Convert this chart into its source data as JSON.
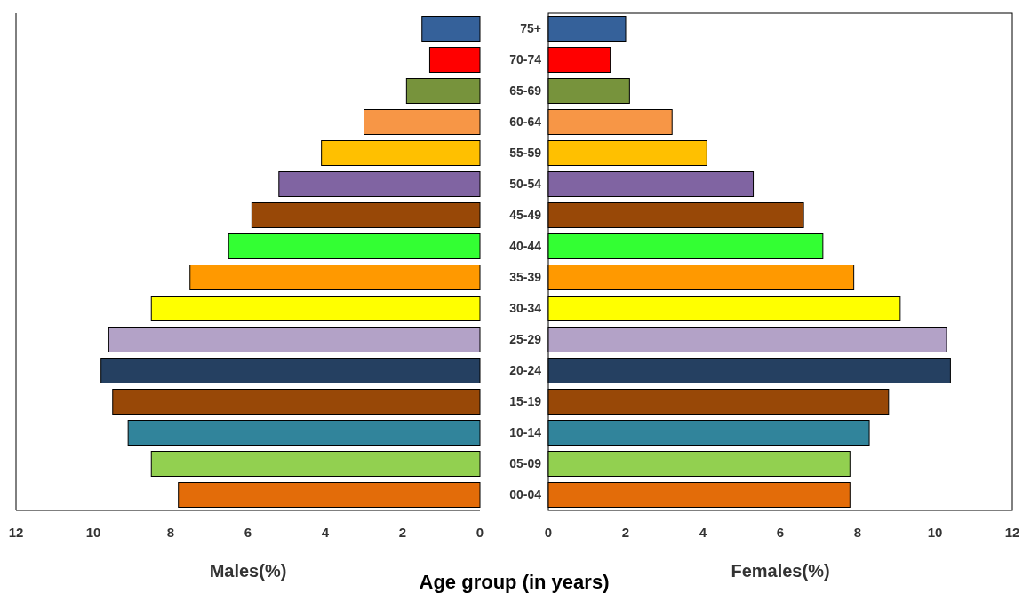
{
  "chart_data": [
    {
      "type": "bar",
      "orientation": "horizontal",
      "xlabel": "Males(%)",
      "tick_labels": "x",
      "categories": [
        null,
        null,
        null,
        null,
        null,
        null,
        null,
        null,
        null,
        null,
        null,
        null,
        null,
        null,
        null,
        null
      ],
      "values": [
        1.5,
        1.3,
        1.9,
        3.0,
        4.1,
        5.2,
        5.9,
        6.5,
        7.5,
        8.5,
        9.6,
        9.8,
        9.5,
        9.1,
        8.5,
        7.8
      ],
      "colors": [
        "#35619a",
        "#ff0000",
        "#77933c",
        "#f79646",
        "#ffc000",
        "#8064a2",
        "#984807",
        "#33ff33",
        "#ff9900",
        "#ffff00",
        "#b3a2c7",
        "#254061",
        "#984807",
        "#31849b",
        "#92d050",
        "#e36c09"
      ],
      "xlim": [
        12,
        0
      ],
      "xticks": [
        12,
        10,
        8,
        6,
        4,
        2,
        0
      ]
    },
    {
      "type": "bar",
      "orientation": "horizontal",
      "xlabel": "Females(%)",
      "annotations": [
        "Age group (in years)"
      ],
      "categories": [
        "75+",
        "70-74",
        "65-69",
        "60-64",
        "55-59",
        "50-54",
        "45-49",
        "40-44",
        "35-39",
        "30-34",
        "25-29",
        "20-24",
        "15-19",
        "10-14",
        "05-09",
        "00-04"
      ],
      "values": [
        2.0,
        1.6,
        2.1,
        3.2,
        4.1,
        5.3,
        6.6,
        7.1,
        7.9,
        9.1,
        10.3,
        10.4,
        8.8,
        8.3,
        7.8,
        7.8
      ],
      "colors": [
        "#35619a",
        "#ff0000",
        "#77933c",
        "#f79646",
        "#ffc000",
        "#8064a2",
        "#984807",
        "#33ff33",
        "#ff9900",
        "#ffff00",
        "#b3a2c7",
        "#254061",
        "#984807",
        "#31849b",
        "#92d050",
        "#e36c09"
      ],
      "xlim": [
        0,
        12
      ],
      "xticks": [
        0,
        2,
        4,
        6,
        8,
        10,
        12
      ]
    }
  ]
}
